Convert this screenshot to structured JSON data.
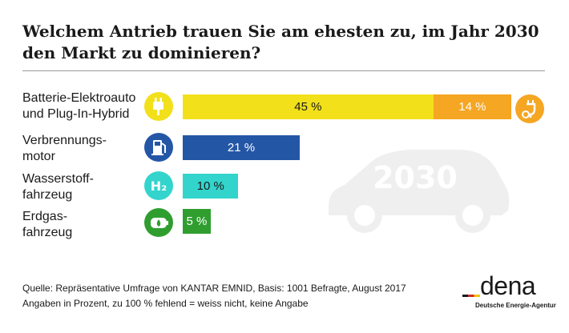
{
  "title": "Welchem Antrieb trauen Sie am ehesten zu, im Jahr 2030 den Markt zu dominieren?",
  "chart_data": {
    "type": "bar",
    "orientation": "horizontal",
    "title": "Welchem Antrieb trauen Sie am ehesten zu, im Jahr 2030 den Markt zu dominieren?",
    "unit": "%",
    "categories": [
      "Batterie-Elektroauto und Plug-In-Hybrid",
      "Verbrennungsmotor",
      "Wasserstofffahrzeug",
      "Erdgasfahrzeug"
    ],
    "series": [
      {
        "name": "Batterie-Elektroauto",
        "values": [
          45,
          21,
          10,
          5
        ],
        "labels": [
          "45 %",
          "21 %",
          "10 %",
          "5 %"
        ],
        "colors": [
          "#f2e01a",
          "#2456a6",
          "#33d4cc",
          "#2f9e2f"
        ]
      },
      {
        "name": "Plug-In-Hybrid",
        "values": [
          14,
          0,
          0,
          0
        ],
        "labels": [
          "14 %",
          "",
          "",
          ""
        ],
        "colors": [
          "#f5a623",
          "",
          "",
          ""
        ]
      }
    ],
    "xlim": [
      0,
      59
    ]
  },
  "rows": [
    {
      "label_line1": "Batterie-Elektroauto",
      "label_line2": "und Plug-In-Hybrid",
      "icon": "plug-icon"
    },
    {
      "label_line1": "Verbrennungs-",
      "label_line2": "motor",
      "icon": "fuel-pump-icon"
    },
    {
      "label_line1": "Wasserstoff-",
      "label_line2": "fahrzeug",
      "icon": "h2-icon",
      "icon_text": "H₂"
    },
    {
      "label_line1": "Erdgas-",
      "label_line2": "fahrzeug",
      "icon": "gas-tank-icon"
    }
  ],
  "hybrid_icon": "plug-hybrid-icon",
  "background_car": {
    "icon": "car-silhouette-icon",
    "text": "2030"
  },
  "source": {
    "line1": "Quelle: Repräsentative Umfrage von KANTAR EMNID, Basis: 1001 Befragte, August 2017",
    "line2": "Angaben in Prozent, zu 100 % fehlend = weiss nicht, keine Angabe"
  },
  "logo": {
    "word": "dena",
    "tagline": "Deutsche Energie-Agentur",
    "flag_colors": [
      "#1a1a1a",
      "#d52b1e",
      "#f2c500"
    ]
  }
}
